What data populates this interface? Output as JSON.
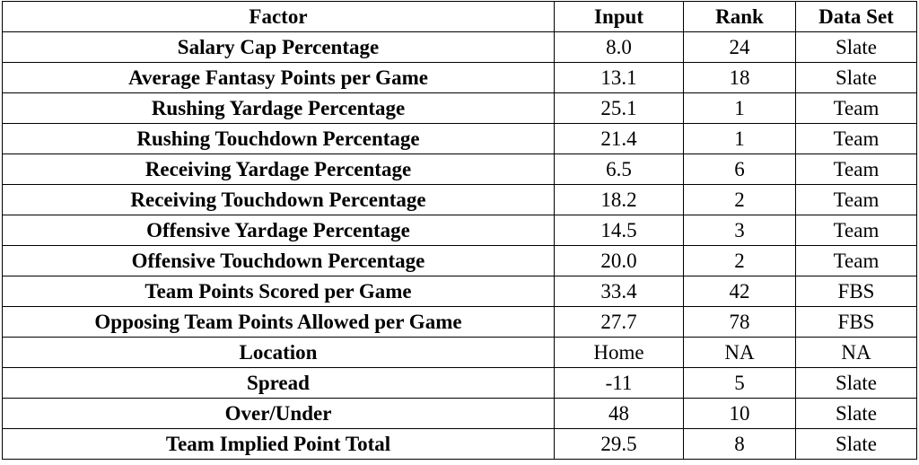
{
  "table": {
    "headers": {
      "factor": "Factor",
      "input": "Input",
      "rank": "Rank",
      "data_set": "Data Set"
    },
    "rows": [
      {
        "factor": "Salary Cap Percentage",
        "input": "8.0",
        "rank": "24",
        "data_set": "Slate"
      },
      {
        "factor": "Average Fantasy Points per Game",
        "input": "13.1",
        "rank": "18",
        "data_set": "Slate"
      },
      {
        "factor": "Rushing Yardage Percentage",
        "input": "25.1",
        "rank": "1",
        "data_set": "Team"
      },
      {
        "factor": "Rushing Touchdown Percentage",
        "input": "21.4",
        "rank": "1",
        "data_set": "Team"
      },
      {
        "factor": "Receiving Yardage Percentage",
        "input": "6.5",
        "rank": "6",
        "data_set": "Team"
      },
      {
        "factor": "Receiving Touchdown Percentage",
        "input": "18.2",
        "rank": "2",
        "data_set": "Team"
      },
      {
        "factor": "Offensive Yardage Percentage",
        "input": "14.5",
        "rank": "3",
        "data_set": "Team"
      },
      {
        "factor": "Offensive Touchdown Percentage",
        "input": "20.0",
        "rank": "2",
        "data_set": "Team"
      },
      {
        "factor": "Team Points Scored per Game",
        "input": "33.4",
        "rank": "42",
        "data_set": "FBS"
      },
      {
        "factor": "Opposing Team Points Allowed per Game",
        "input": "27.7",
        "rank": "78",
        "data_set": "FBS"
      },
      {
        "factor": "Location",
        "input": "Home",
        "rank": "NA",
        "data_set": "NA"
      },
      {
        "factor": "Spread",
        "input": "-11",
        "rank": "5",
        "data_set": "Slate"
      },
      {
        "factor": "Over/Under",
        "input": "48",
        "rank": "10",
        "data_set": "Slate"
      },
      {
        "factor": "Team Implied Point Total",
        "input": "29.5",
        "rank": "8",
        "data_set": "Slate"
      }
    ]
  }
}
